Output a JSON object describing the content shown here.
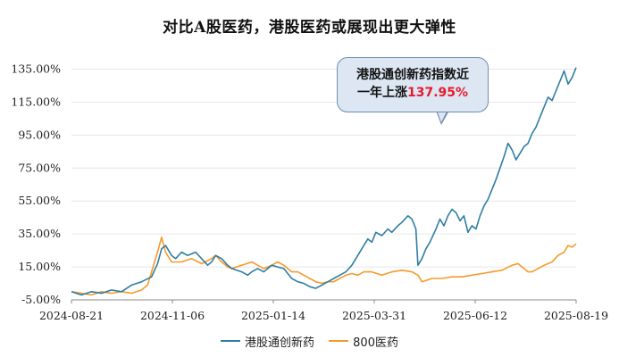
{
  "title": "对比A股医药，港股医药或展现出更大弹性",
  "callout": {
    "line1": "港股通创新药指数近",
    "line2_prefix": "一年上涨",
    "line2_value": "137.95%"
  },
  "colors": {
    "series1": "#2f7ea3",
    "series2": "#f59a2c",
    "grid": "#e6e6e6"
  },
  "chart_data": {
    "type": "line",
    "title": "对比A股医药，港股医药或展现出更大弹性",
    "xlabel": "",
    "ylabel": "",
    "ylim": [
      -5,
      145
    ],
    "yticks": [
      "135.00%",
      "115.00%",
      "95.00%",
      "75.00%",
      "55.00%",
      "35.00%",
      "15.00%",
      "-5.00%"
    ],
    "ytick_values": [
      135,
      115,
      95,
      75,
      55,
      35,
      15,
      -5
    ],
    "xticks": [
      "2024-08-21",
      "2024-11-06",
      "2025-01-14",
      "2025-03-31",
      "2025-06-12",
      "2025-08-19"
    ],
    "legend_position": "bottom",
    "grid": true,
    "x_note": "x values are trading-day index 0..252",
    "series": [
      {
        "name": "港股通创新药",
        "color": "#2f7ea3",
        "points": [
          [
            0,
            0
          ],
          [
            5,
            -2
          ],
          [
            10,
            0
          ],
          [
            15,
            -1
          ],
          [
            20,
            1
          ],
          [
            25,
            0
          ],
          [
            30,
            4
          ],
          [
            35,
            6
          ],
          [
            40,
            9
          ],
          [
            43,
            17
          ],
          [
            45,
            26
          ],
          [
            47,
            28
          ],
          [
            50,
            22
          ],
          [
            52,
            20
          ],
          [
            55,
            24
          ],
          [
            58,
            22
          ],
          [
            62,
            24
          ],
          [
            65,
            20
          ],
          [
            68,
            16
          ],
          [
            70,
            18
          ],
          [
            72,
            22
          ],
          [
            75,
            20
          ],
          [
            78,
            16
          ],
          [
            80,
            14
          ],
          [
            85,
            12
          ],
          [
            88,
            10
          ],
          [
            90,
            12
          ],
          [
            93,
            14
          ],
          [
            96,
            12
          ],
          [
            100,
            16
          ],
          [
            103,
            15
          ],
          [
            106,
            14
          ],
          [
            110,
            8
          ],
          [
            113,
            6
          ],
          [
            116,
            5
          ],
          [
            119,
            3
          ],
          [
            122,
            2
          ],
          [
            125,
            4
          ],
          [
            128,
            6
          ],
          [
            131,
            8
          ],
          [
            134,
            10
          ],
          [
            137,
            12
          ],
          [
            140,
            16
          ],
          [
            143,
            22
          ],
          [
            146,
            28
          ],
          [
            148,
            32
          ],
          [
            150,
            30
          ],
          [
            152,
            36
          ],
          [
            155,
            34
          ],
          [
            158,
            38
          ],
          [
            160,
            36
          ],
          [
            163,
            40
          ],
          [
            165,
            42
          ],
          [
            168,
            46
          ],
          [
            170,
            44
          ],
          [
            172,
            38
          ],
          [
            173,
            16
          ],
          [
            175,
            20
          ],
          [
            177,
            26
          ],
          [
            179,
            30
          ],
          [
            182,
            38
          ],
          [
            184,
            44
          ],
          [
            186,
            40
          ],
          [
            188,
            46
          ],
          [
            190,
            50
          ],
          [
            192,
            48
          ],
          [
            194,
            43
          ],
          [
            196,
            46
          ],
          [
            198,
            36
          ],
          [
            200,
            40
          ],
          [
            202,
            38
          ],
          [
            204,
            46
          ],
          [
            206,
            52
          ],
          [
            208,
            56
          ],
          [
            210,
            62
          ],
          [
            212,
            68
          ],
          [
            214,
            75
          ],
          [
            216,
            82
          ],
          [
            218,
            90
          ],
          [
            220,
            86
          ],
          [
            222,
            80
          ],
          [
            224,
            84
          ],
          [
            226,
            88
          ],
          [
            228,
            90
          ],
          [
            230,
            96
          ],
          [
            232,
            100
          ],
          [
            234,
            106
          ],
          [
            236,
            112
          ],
          [
            238,
            118
          ],
          [
            240,
            116
          ],
          [
            242,
            122
          ],
          [
            244,
            128
          ],
          [
            246,
            134
          ],
          [
            248,
            126
          ],
          [
            250,
            130
          ],
          [
            252,
            136
          ]
        ]
      },
      {
        "name": "800医药",
        "color": "#f59a2c",
        "points": [
          [
            0,
            0
          ],
          [
            5,
            -1
          ],
          [
            10,
            -2
          ],
          [
            15,
            0
          ],
          [
            20,
            -1
          ],
          [
            25,
            0
          ],
          [
            30,
            -1
          ],
          [
            35,
            1
          ],
          [
            38,
            4
          ],
          [
            40,
            12
          ],
          [
            43,
            24
          ],
          [
            45,
            33
          ],
          [
            47,
            24
          ],
          [
            50,
            18
          ],
          [
            55,
            18
          ],
          [
            60,
            20
          ],
          [
            65,
            17
          ],
          [
            70,
            20
          ],
          [
            72,
            22
          ],
          [
            75,
            18
          ],
          [
            78,
            15
          ],
          [
            80,
            14
          ],
          [
            85,
            16
          ],
          [
            90,
            18
          ],
          [
            93,
            16
          ],
          [
            96,
            14
          ],
          [
            100,
            16
          ],
          [
            103,
            18
          ],
          [
            106,
            16
          ],
          [
            110,
            12
          ],
          [
            113,
            12
          ],
          [
            116,
            10
          ],
          [
            119,
            8
          ],
          [
            122,
            6
          ],
          [
            125,
            5
          ],
          [
            128,
            6
          ],
          [
            131,
            6
          ],
          [
            134,
            8
          ],
          [
            137,
            10
          ],
          [
            140,
            11
          ],
          [
            143,
            10
          ],
          [
            146,
            12
          ],
          [
            150,
            12
          ],
          [
            155,
            10
          ],
          [
            160,
            12
          ],
          [
            165,
            13
          ],
          [
            170,
            12
          ],
          [
            173,
            10
          ],
          [
            175,
            6
          ],
          [
            180,
            8
          ],
          [
            185,
            8
          ],
          [
            190,
            9
          ],
          [
            195,
            9
          ],
          [
            200,
            10
          ],
          [
            205,
            11
          ],
          [
            210,
            12
          ],
          [
            215,
            13
          ],
          [
            220,
            16
          ],
          [
            223,
            17
          ],
          [
            225,
            15
          ],
          [
            228,
            12
          ],
          [
            230,
            12
          ],
          [
            233,
            14
          ],
          [
            236,
            16
          ],
          [
            240,
            18
          ],
          [
            243,
            22
          ],
          [
            246,
            24
          ],
          [
            248,
            28
          ],
          [
            250,
            27
          ],
          [
            252,
            29
          ]
        ]
      }
    ]
  }
}
